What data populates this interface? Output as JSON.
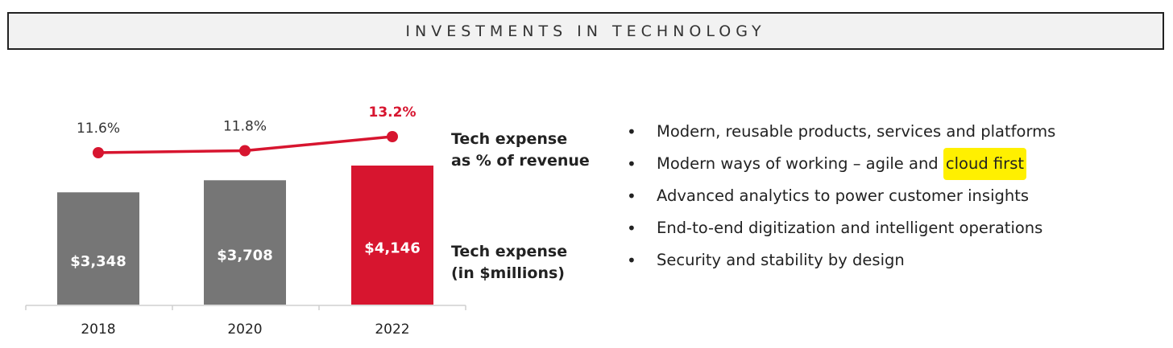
{
  "header": {
    "title": "INVESTMENTS IN TECHNOLOGY"
  },
  "legend": {
    "line_label_1": "Tech expense",
    "line_label_2": "as % of revenue",
    "bar_label_1": "Tech expense",
    "bar_label_2": "(in $millions)"
  },
  "chart_data": {
    "type": "bar",
    "categories": [
      "2018",
      "2020",
      "2022"
    ],
    "series": [
      {
        "name": "Tech expense (in $millions)",
        "type": "bar",
        "values": [
          3348,
          3708,
          4146
        ],
        "labels": [
          "$3,348",
          "$3,708",
          "$4,146"
        ]
      },
      {
        "name": "Tech expense as % of revenue",
        "type": "line",
        "values": [
          11.6,
          11.8,
          13.2
        ],
        "labels": [
          "11.6%",
          "11.8%",
          "13.2%"
        ]
      }
    ],
    "bar_colors": [
      "#767676",
      "#767676",
      "#d7152f"
    ],
    "line_color": "#d7152f",
    "highlight_color": "#d7152f",
    "label_colors": [
      "#333333",
      "#333333",
      "#d7152f"
    ]
  },
  "bullets": [
    {
      "text": "Modern, reusable products, services and platforms",
      "highlight": ""
    },
    {
      "text": "Modern ways of working – agile and ",
      "highlight": "cloud first"
    },
    {
      "text": "Advanced analytics to power customer insights",
      "highlight": ""
    },
    {
      "text": "End-to-end digitization and intelligent operations",
      "highlight": ""
    },
    {
      "text": "Security and stability by design",
      "highlight": ""
    }
  ]
}
